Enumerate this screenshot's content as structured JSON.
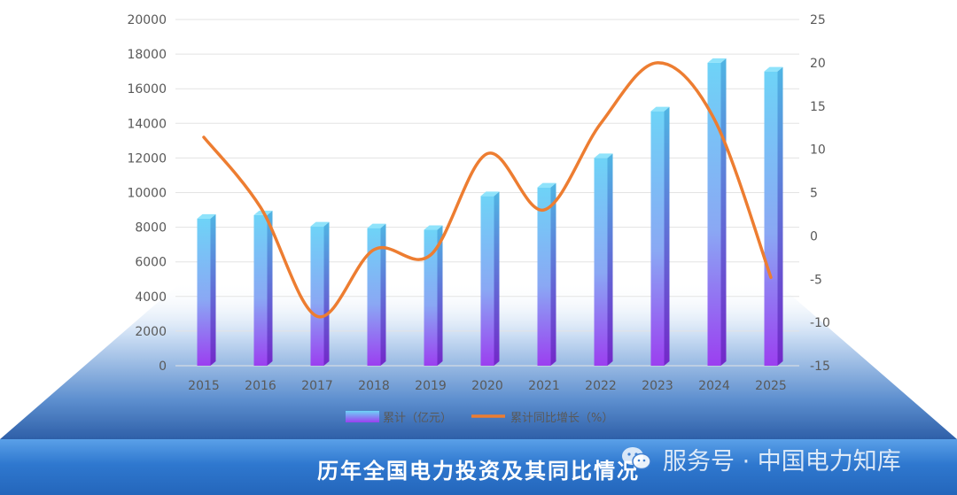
{
  "chart_data": {
    "type": "bar",
    "title": "历年全国电力投资及其同比情况",
    "categories": [
      "2015",
      "2016",
      "2017",
      "2018",
      "2019",
      "2020",
      "2021",
      "2022",
      "2023",
      "2024",
      "2025"
    ],
    "series": [
      {
        "name": "累计（亿元）",
        "type": "bar",
        "axis": "left",
        "values": [
          8500,
          8700,
          8050,
          7950,
          7850,
          9800,
          10300,
          12000,
          14700,
          17500,
          17000
        ]
      },
      {
        "name": "累计同比增长（%）",
        "type": "line",
        "axis": "right",
        "values": [
          11.4,
          3.3,
          -9.3,
          -1.6,
          -2.2,
          9.5,
          3.0,
          13.0,
          20.0,
          13.5,
          -4.8
        ]
      }
    ],
    "y_left": {
      "min": 0,
      "max": 20000,
      "ticks": [
        0,
        2000,
        4000,
        6000,
        8000,
        10000,
        12000,
        14000,
        16000,
        18000,
        20000
      ]
    },
    "y_right": {
      "min": -15,
      "max": 25,
      "ticks": [
        -15,
        -10,
        -5,
        0,
        5,
        10,
        15,
        20,
        25
      ]
    },
    "legend_position": "bottom-center",
    "grid": true,
    "colors": {
      "bar_top": "#6ed3f7",
      "bar_bottom": "#9b3ff0",
      "line": "#ed7d31"
    }
  },
  "watermark": {
    "text": "服务号 · 中国电力知库",
    "icon": "wechat-icon"
  }
}
